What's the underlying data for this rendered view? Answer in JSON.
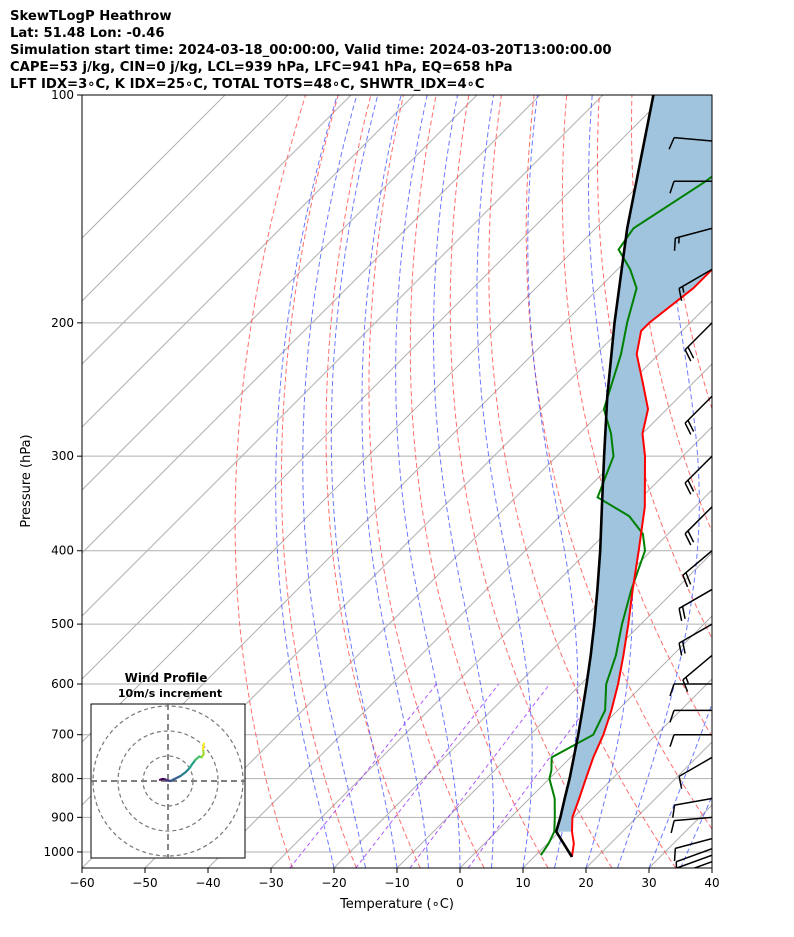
{
  "header": {
    "line1": "SkewTLogP Heathrow",
    "line2": "Lat: 51.48   Lon: -0.46",
    "line3": "Simulation start time: 2024-03-18_00:00:00, Valid time: 2024-03-20T13:00:00.00",
    "line4": "CAPE=53 j/kg, CIN=0 j/kg, LCL=939 hPa, LFC=941 hPa, EQ=658 hPa",
    "line5": "LFT IDX=3∘C, K IDX=25∘C, TOTAL TOTS=48∘C, SHWTR_IDX=4∘C"
  },
  "chart_data": {
    "type": "line",
    "title": "SkewTLogP Heathrow",
    "xlabel": "Temperature (∘C)",
    "ylabel": "Pressure (hPa)",
    "x_ticks": [
      -60,
      -50,
      -40,
      -30,
      -20,
      -10,
      0,
      10,
      20,
      30,
      40
    ],
    "y_ticks": [
      100,
      200,
      300,
      400,
      500,
      600,
      700,
      800,
      900,
      1000
    ],
    "ylim": [
      1050,
      100
    ],
    "y_scale": "log",
    "grid": true,
    "skewed_temperature_axis": true,
    "colors": {
      "temperature": "#ff0000",
      "dewpoint": "#008000",
      "parcel": "#000000",
      "cape_fill": "#a0c4de",
      "dry_adiabats": "#ff5555",
      "moist_adiabats": "#3b4cff",
      "mixing_ratio": "#9b30ff"
    },
    "series": [
      {
        "name": "Temperature",
        "points": [
          {
            "p": 1015,
            "t": 16.0
          },
          {
            "p": 975,
            "t": 14.2
          },
          {
            "p": 940,
            "t": 12.0
          },
          {
            "p": 900,
            "t": 9.8
          },
          {
            "p": 850,
            "t": 7.9
          },
          {
            "p": 800,
            "t": 5.8
          },
          {
            "p": 750,
            "t": 3.6
          },
          {
            "p": 700,
            "t": 1.6
          },
          {
            "p": 650,
            "t": -1.0
          },
          {
            "p": 600,
            "t": -4.1
          },
          {
            "p": 550,
            "t": -7.8
          },
          {
            "p": 500,
            "t": -12.0
          },
          {
            "p": 450,
            "t": -16.8
          },
          {
            "p": 400,
            "t": -22.0
          },
          {
            "p": 350,
            "t": -28.0
          },
          {
            "p": 300,
            "t": -36.0
          },
          {
            "p": 280,
            "t": -40.0
          },
          {
            "p": 260,
            "t": -43.0
          },
          {
            "p": 240,
            "t": -48.0
          },
          {
            "p": 220,
            "t": -53.5
          },
          {
            "p": 205,
            "t": -56.5
          },
          {
            "p": 200,
            "t": -56.5
          },
          {
            "p": 180,
            "t": -55.0
          },
          {
            "p": 170,
            "t": -55.0
          },
          {
            "p": 160,
            "t": -56.0
          },
          {
            "p": 150,
            "t": -56.5
          },
          {
            "p": 140,
            "t": -57.0
          },
          {
            "p": 130,
            "t": -57.0
          },
          {
            "p": 120,
            "t": -58.0
          },
          {
            "p": 110,
            "t": -59.0
          },
          {
            "p": 100,
            "t": -60.5
          }
        ]
      },
      {
        "name": "Dewpoint",
        "points": [
          {
            "p": 1010,
            "t": 10.8
          },
          {
            "p": 975,
            "t": 10.2
          },
          {
            "p": 940,
            "t": 9.2
          },
          {
            "p": 900,
            "t": 7.0
          },
          {
            "p": 850,
            "t": 4.0
          },
          {
            "p": 800,
            "t": 0.0
          },
          {
            "p": 780,
            "t": -1.0
          },
          {
            "p": 750,
            "t": -3.0
          },
          {
            "p": 700,
            "t": 0.0
          },
          {
            "p": 650,
            "t": -2.0
          },
          {
            "p": 600,
            "t": -6.0
          },
          {
            "p": 550,
            "t": -9.0
          },
          {
            "p": 500,
            "t": -13.0
          },
          {
            "p": 450,
            "t": -17.0
          },
          {
            "p": 400,
            "t": -21.0
          },
          {
            "p": 380,
            "t": -24.0
          },
          {
            "p": 360,
            "t": -29.0
          },
          {
            "p": 340,
            "t": -37.0
          },
          {
            "p": 300,
            "t": -41.0
          },
          {
            "p": 280,
            "t": -45.0
          },
          {
            "p": 260,
            "t": -50.0
          },
          {
            "p": 220,
            "t": -56.0
          },
          {
            "p": 200,
            "t": -60.0
          },
          {
            "p": 180,
            "t": -64.0
          },
          {
            "p": 170,
            "t": -68.0
          },
          {
            "p": 160,
            "t": -73.0
          },
          {
            "p": 150,
            "t": -74.0
          },
          {
            "p": 130,
            "t": -70.0
          },
          {
            "p": 115,
            "t": -68.0
          },
          {
            "p": 100,
            "t": -66.0
          }
        ]
      },
      {
        "name": "Parcel",
        "points": [
          {
            "p": 1015,
            "t": 16.0
          },
          {
            "p": 940,
            "t": 9.5
          },
          {
            "p": 900,
            "t": 7.9
          },
          {
            "p": 850,
            "t": 5.6
          },
          {
            "p": 800,
            "t": 3.2
          },
          {
            "p": 750,
            "t": 0.5
          },
          {
            "p": 700,
            "t": -2.4
          },
          {
            "p": 650,
            "t": -5.6
          },
          {
            "p": 600,
            "t": -9.1
          },
          {
            "p": 550,
            "t": -13.0
          },
          {
            "p": 500,
            "t": -17.4
          },
          {
            "p": 450,
            "t": -22.4
          },
          {
            "p": 400,
            "t": -28.1
          },
          {
            "p": 350,
            "t": -34.8
          },
          {
            "p": 300,
            "t": -42.5
          },
          {
            "p": 250,
            "t": -51.5
          },
          {
            "p": 200,
            "t": -62.0
          },
          {
            "p": 150,
            "t": -75.0
          },
          {
            "p": 100,
            "t": -92.0
          }
        ]
      }
    ],
    "wind_barbs": [
      {
        "p": 1030,
        "speed_kt": 10,
        "direction_deg": 250
      },
      {
        "p": 1010,
        "speed_kt": 10,
        "direction_deg": 250
      },
      {
        "p": 990,
        "speed_kt": 10,
        "direction_deg": 250
      },
      {
        "p": 960,
        "speed_kt": 10,
        "direction_deg": 255
      },
      {
        "p": 900,
        "speed_kt": 10,
        "direction_deg": 265
      },
      {
        "p": 850,
        "speed_kt": 10,
        "direction_deg": 260
      },
      {
        "p": 750,
        "speed_kt": 10,
        "direction_deg": 240
      },
      {
        "p": 700,
        "speed_kt": 10,
        "direction_deg": 270
      },
      {
        "p": 650,
        "speed_kt": 10,
        "direction_deg": 270
      },
      {
        "p": 600,
        "speed_kt": 10,
        "direction_deg": 270
      },
      {
        "p": 550,
        "speed_kt": 15,
        "direction_deg": 230
      },
      {
        "p": 500,
        "speed_kt": 20,
        "direction_deg": 240
      },
      {
        "p": 450,
        "speed_kt": 20,
        "direction_deg": 240
      },
      {
        "p": 400,
        "speed_kt": 20,
        "direction_deg": 230
      },
      {
        "p": 350,
        "speed_kt": 20,
        "direction_deg": 225
      },
      {
        "p": 300,
        "speed_kt": 20,
        "direction_deg": 225
      },
      {
        "p": 250,
        "speed_kt": 20,
        "direction_deg": 225
      },
      {
        "p": 200,
        "speed_kt": 20,
        "direction_deg": 225
      },
      {
        "p": 170,
        "speed_kt": 15,
        "direction_deg": 240
      },
      {
        "p": 150,
        "speed_kt": 15,
        "direction_deg": 255
      },
      {
        "p": 130,
        "speed_kt": 10,
        "direction_deg": 270
      },
      {
        "p": 115,
        "speed_kt": 10,
        "direction_deg": 275
      }
    ],
    "inset": {
      "title": "Wind Profile",
      "subtitle": "10m/s increment",
      "rings_mps": [
        10,
        20,
        30
      ],
      "hodograph_uv": [
        [
          -3.2,
          0.5
        ],
        [
          -2.2,
          0.8
        ],
        [
          -1.2,
          0.7
        ],
        [
          -0.2,
          0.2
        ],
        [
          1.0,
          0.0
        ],
        [
          3.0,
          1.0
        ],
        [
          5.0,
          2.0
        ],
        [
          7.0,
          3.5
        ],
        [
          8.5,
          5.0
        ],
        [
          9.5,
          6.5
        ],
        [
          11.0,
          8.5
        ],
        [
          12.5,
          9.8
        ],
        [
          13.5,
          9.5
        ],
        [
          14.3,
          10.8
        ],
        [
          14.0,
          12.8
        ],
        [
          14.3,
          15.0
        ]
      ],
      "hodograph_colors": [
        "#440154",
        "#46327e",
        "#365c8d",
        "#277f8e",
        "#1fa187",
        "#4ac16d",
        "#a0da39",
        "#fde725"
      ]
    }
  }
}
